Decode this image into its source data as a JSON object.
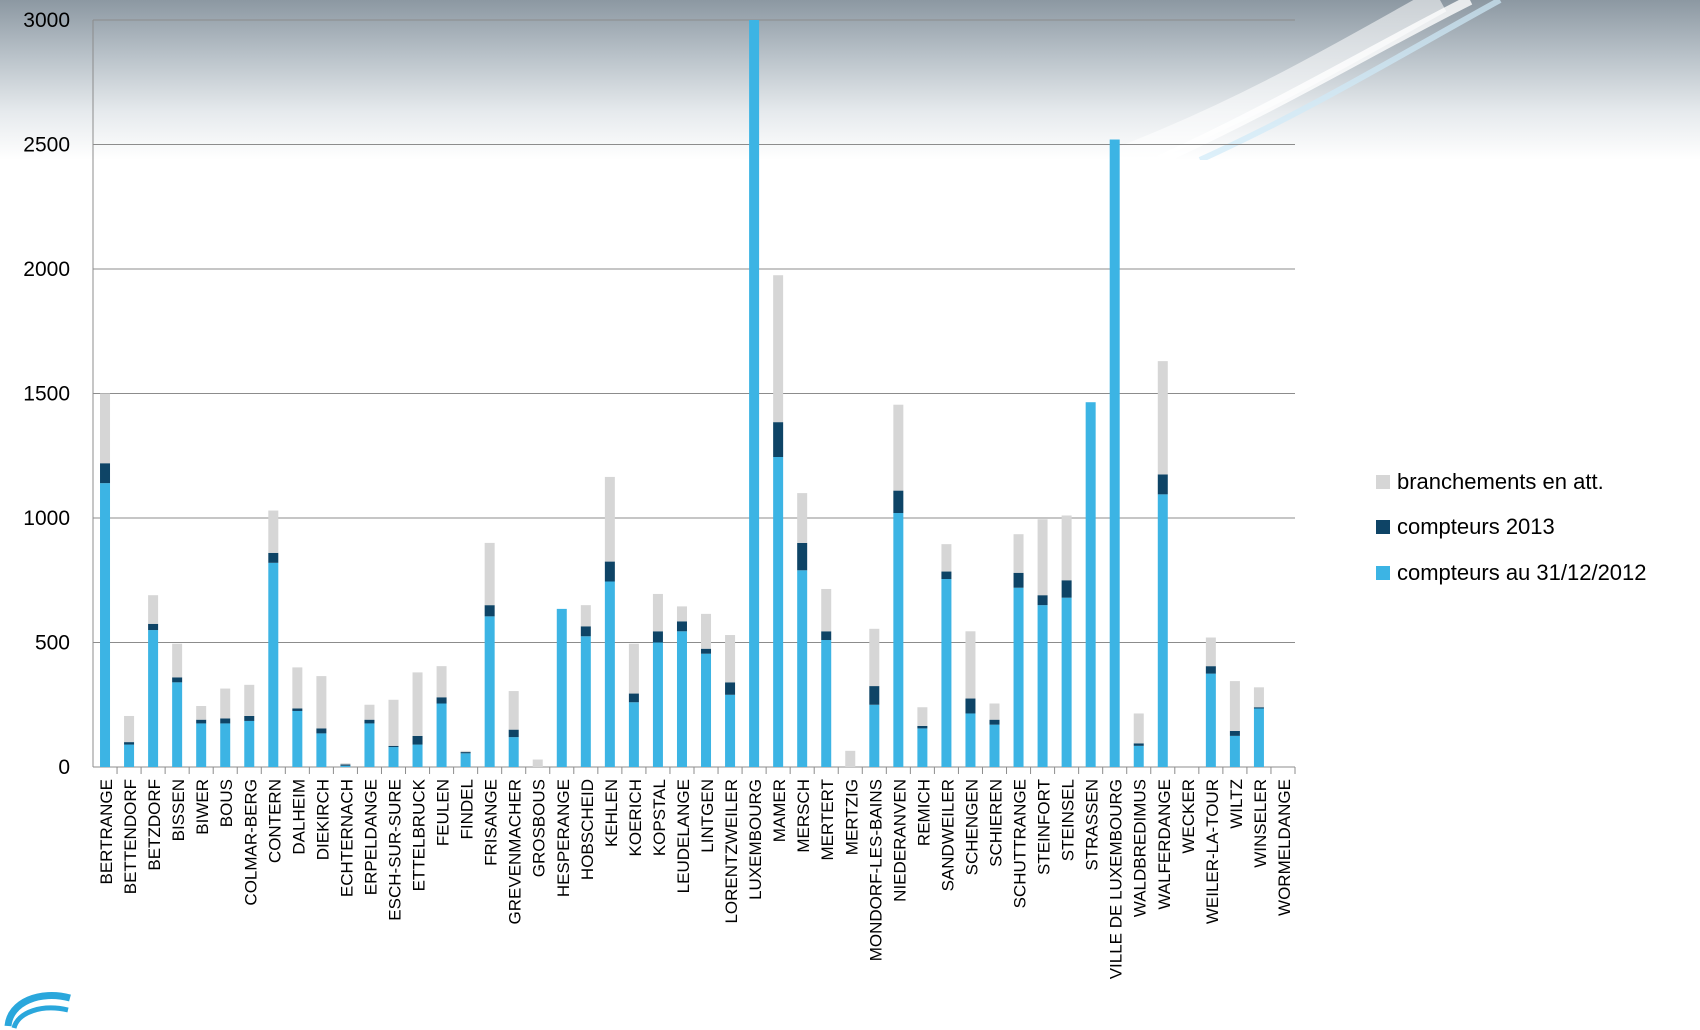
{
  "chart_data": {
    "type": "bar",
    "stacked": true,
    "ylim": [
      0,
      3000
    ],
    "yticks": [
      0,
      500,
      1000,
      1500,
      2000,
      2500,
      3000
    ],
    "categories": [
      "BERTRANGE",
      "BETTENDORF",
      "BETZDORF",
      "BISSEN",
      "BIWER",
      "BOUS",
      "COLMAR-BERG",
      "CONTERN",
      "DALHEIM",
      "DIEKIRCH",
      "ECHTERNACH",
      "ERPELDANGE",
      "ESCH-SUR-SURE",
      "ETTELBRUCK",
      "FEULEN",
      "FINDEL",
      "FRISANGE",
      "GREVENMACHER",
      "GROSBOUS",
      "HESPERANGE",
      "HOBSCHEID",
      "KEHLEN",
      "KOERICH",
      "KOPSTAL",
      "LEUDELANGE",
      "LINTGEN",
      "LORENTZWEILER",
      "LUXEMBOURG",
      "MAMER",
      "MERSCH",
      "MERTERT",
      "MERTZIG",
      "MONDORF-LES-BAINS",
      "NIEDERANVEN",
      "REMICH",
      "SANDWEILER",
      "SCHENGEN",
      "SCHIEREN",
      "SCHUTTRANGE",
      "STEINFORT",
      "STEINSEL",
      "STRASSEN",
      "VILLE DE LUXEMBOURG",
      "WALDBREDIMUS",
      "WALFERDANGE",
      "WECKER",
      "WEILER-LA-TOUR",
      "WILTZ",
      "WINSELER",
      "WORMELDANGE"
    ],
    "series": [
      {
        "name": "compteurs au 31/12/2012",
        "color": "#3cb4e4",
        "values": [
          1140,
          90,
          550,
          340,
          175,
          175,
          185,
          820,
          225,
          135,
          5,
          175,
          80,
          90,
          255,
          55,
          605,
          120,
          0,
          635,
          525,
          745,
          260,
          500,
          545,
          455,
          290,
          3000,
          1245,
          790,
          510,
          0,
          250,
          1020,
          155,
          755,
          215,
          170,
          720,
          650,
          680,
          1465,
          2520,
          85,
          1095,
          0,
          375,
          125,
          235,
          0
        ]
      },
      {
        "name": "compteurs 2013",
        "color": "#0e4466",
        "values": [
          80,
          10,
          25,
          20,
          15,
          20,
          20,
          40,
          10,
          20,
          5,
          15,
          5,
          35,
          25,
          5,
          45,
          30,
          0,
          0,
          40,
          80,
          35,
          45,
          40,
          20,
          50,
          0,
          140,
          110,
          35,
          0,
          75,
          90,
          10,
          30,
          60,
          20,
          60,
          40,
          70,
          0,
          0,
          10,
          80,
          0,
          30,
          20,
          5,
          0
        ]
      },
      {
        "name": "branchements en att.",
        "color": "#d6d6d6",
        "values": [
          280,
          105,
          115,
          135,
          55,
          120,
          125,
          170,
          165,
          210,
          5,
          60,
          185,
          255,
          125,
          5,
          250,
          155,
          30,
          0,
          85,
          340,
          200,
          150,
          60,
          140,
          190,
          0,
          590,
          200,
          170,
          65,
          230,
          345,
          75,
          110,
          270,
          65,
          155,
          305,
          260,
          0,
          0,
          120,
          455,
          0,
          115,
          200,
          80,
          0
        ]
      }
    ],
    "legend": {
      "position": "right",
      "entries": [
        "branchements en att.",
        "compteurs 2013",
        "compteurs au 31/12/2012"
      ]
    }
  }
}
